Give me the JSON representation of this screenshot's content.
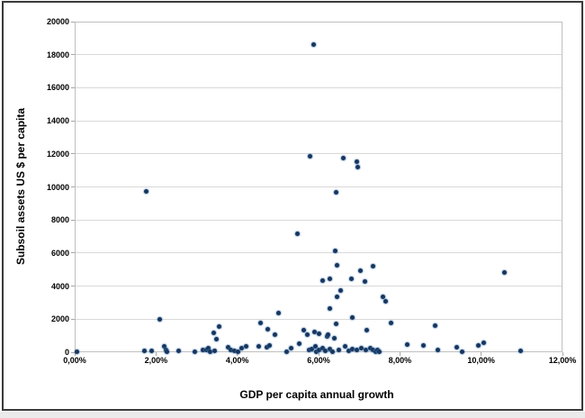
{
  "chart_data": {
    "type": "scatter",
    "title": "",
    "xlabel": "GDP per capita annual growth",
    "ylabel": "Subsoil assets US $ per capita",
    "xlim": [
      0,
      12
    ],
    "ylim": [
      0,
      20000
    ],
    "grid": "horizontal",
    "legend": "none",
    "point_color": "#17365d",
    "x_tick_values": [
      0,
      2,
      4,
      6,
      8,
      10,
      12
    ],
    "x_tick_labels": [
      "0,00%",
      "2,00%",
      "4,00%",
      "6,00%",
      "8,00%",
      "10,00%",
      "12,00%"
    ],
    "y_tick_values": [
      0,
      2000,
      4000,
      6000,
      8000,
      10000,
      12000,
      14000,
      16000,
      18000,
      20000
    ],
    "y_tick_labels": [
      "0",
      "2000",
      "4000",
      "6000",
      "8000",
      "10000",
      "12000",
      "14000",
      "16000",
      "18000",
      "20000"
    ],
    "x_unit": "percent",
    "y_unit": "US $ per capita",
    "points": [
      [
        0.05,
        50
      ],
      [
        1.72,
        60
      ],
      [
        1.77,
        9750
      ],
      [
        1.89,
        60
      ],
      [
        2.09,
        2000
      ],
      [
        2.21,
        350
      ],
      [
        2.24,
        150
      ],
      [
        2.28,
        30
      ],
      [
        2.55,
        60
      ],
      [
        2.96,
        50
      ],
      [
        3.16,
        130
      ],
      [
        3.25,
        160
      ],
      [
        3.29,
        220
      ],
      [
        3.34,
        50
      ],
      [
        3.42,
        1150
      ],
      [
        3.45,
        60
      ],
      [
        3.48,
        800
      ],
      [
        3.56,
        1550
      ],
      [
        3.77,
        300
      ],
      [
        3.84,
        150
      ],
      [
        3.92,
        100
      ],
      [
        4.01,
        30
      ],
      [
        4.1,
        270
      ],
      [
        4.21,
        360
      ],
      [
        4.52,
        360
      ],
      [
        4.57,
        1750
      ],
      [
        4.73,
        310
      ],
      [
        4.74,
        1400
      ],
      [
        4.8,
        400
      ],
      [
        4.93,
        1050
      ],
      [
        5.02,
        2350
      ],
      [
        5.21,
        20
      ],
      [
        5.32,
        270
      ],
      [
        5.49,
        7150
      ],
      [
        5.52,
        520
      ],
      [
        5.63,
        1350
      ],
      [
        5.73,
        1050
      ],
      [
        5.76,
        150
      ],
      [
        5.8,
        11850
      ],
      [
        5.84,
        200
      ],
      [
        5.87,
        18600
      ],
      [
        5.9,
        1200
      ],
      [
        5.93,
        330
      ],
      [
        5.95,
        40
      ],
      [
        6.0,
        110
      ],
      [
        6.02,
        1100
      ],
      [
        6.1,
        4350
      ],
      [
        6.11,
        250
      ],
      [
        6.17,
        70
      ],
      [
        6.21,
        980
      ],
      [
        6.24,
        1050
      ],
      [
        6.27,
        200
      ],
      [
        6.28,
        4450
      ],
      [
        6.28,
        2650
      ],
      [
        6.35,
        30
      ],
      [
        6.39,
        850
      ],
      [
        6.41,
        6150
      ],
      [
        6.43,
        9700
      ],
      [
        6.43,
        1730
      ],
      [
        6.46,
        3350
      ],
      [
        6.46,
        5250
      ],
      [
        6.5,
        150
      ],
      [
        6.55,
        3730
      ],
      [
        6.61,
        11750
      ],
      [
        6.65,
        350
      ],
      [
        6.74,
        70
      ],
      [
        6.8,
        4450
      ],
      [
        6.83,
        2100
      ],
      [
        6.83,
        200
      ],
      [
        6.93,
        11500
      ],
      [
        6.94,
        110
      ],
      [
        6.97,
        11200
      ],
      [
        7.02,
        4950
      ],
      [
        7.05,
        260
      ],
      [
        7.13,
        4280
      ],
      [
        7.17,
        110
      ],
      [
        7.18,
        1330
      ],
      [
        7.28,
        270
      ],
      [
        7.33,
        5220
      ],
      [
        7.35,
        150
      ],
      [
        7.41,
        10
      ],
      [
        7.45,
        150
      ],
      [
        7.5,
        40
      ],
      [
        7.59,
        3370
      ],
      [
        7.65,
        3100
      ],
      [
        7.79,
        1750
      ],
      [
        8.18,
        450
      ],
      [
        8.57,
        420
      ],
      [
        8.86,
        1600
      ],
      [
        8.94,
        130
      ],
      [
        9.39,
        310
      ],
      [
        9.53,
        10
      ],
      [
        9.93,
        420
      ],
      [
        10.07,
        550
      ],
      [
        10.58,
        4800
      ],
      [
        10.96,
        100
      ]
    ]
  }
}
